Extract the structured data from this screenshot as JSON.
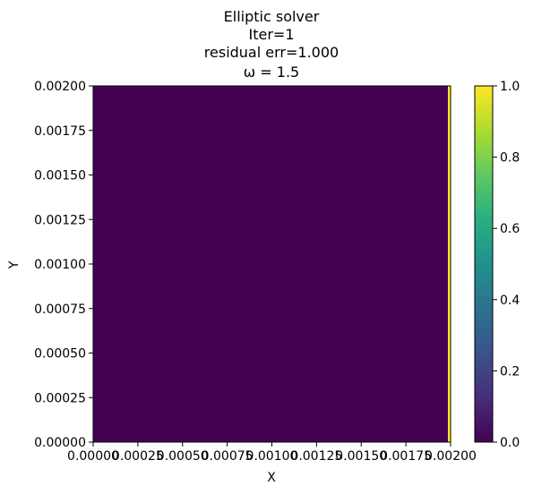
{
  "chart_data": {
    "type": "heatmap",
    "title_lines": [
      "Elliptic solver",
      "Iter=1",
      "residual err=1.000",
      "ω = 1.5"
    ],
    "xlabel": "X",
    "ylabel": "Y",
    "xlim": [
      0.0,
      0.002
    ],
    "ylim": [
      0.0,
      0.002
    ],
    "x_ticks": [
      "0.00000",
      "0.00025",
      "0.00050",
      "0.00075",
      "0.00100",
      "0.00125",
      "0.00150",
      "0.00175",
      "0.00200"
    ],
    "y_ticks": [
      "0.00000",
      "0.00025",
      "0.00050",
      "0.00075",
      "0.00100",
      "0.00125",
      "0.00150",
      "0.00175",
      "0.00200"
    ],
    "field": {
      "background_value": 0.0,
      "boundary_value": 1.0,
      "boundary_side": "right",
      "boundary_x_start": 0.001985
    },
    "colormap": "viridis",
    "colorbar": {
      "range": [
        0.0,
        1.0
      ],
      "ticks": [
        "0.0",
        "0.2",
        "0.4",
        "0.6",
        "0.8",
        "1.0"
      ]
    },
    "grid": false
  }
}
